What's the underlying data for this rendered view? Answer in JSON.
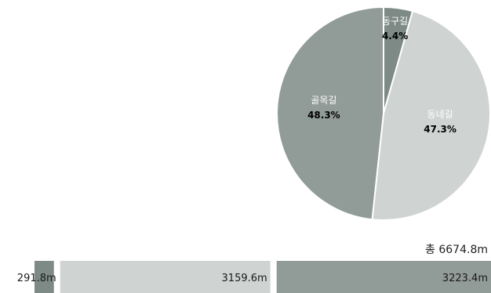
{
  "chart_data": [
    {
      "type": "pie",
      "categories": [
        "동구길",
        "동네길",
        "골목길"
      ],
      "values": [
        4.4,
        47.3,
        48.3
      ],
      "value_labels": [
        "4.4%",
        "47.3%",
        "48.3%"
      ],
      "colors": [
        "#7d8a86",
        "#cfd3d2",
        "#919b98"
      ]
    },
    {
      "type": "bar",
      "orientation": "horizontal-stacked",
      "categories": [
        "동구길",
        "동네길",
        "골목길"
      ],
      "values": [
        291.8,
        3159.6,
        3223.4
      ],
      "value_labels": [
        "291.8m",
        "3159.6m",
        "3223.4m"
      ],
      "colors": [
        "#7d8a86",
        "#cfd3d2",
        "#919b98"
      ],
      "total_label": "총 6674.8m"
    }
  ]
}
